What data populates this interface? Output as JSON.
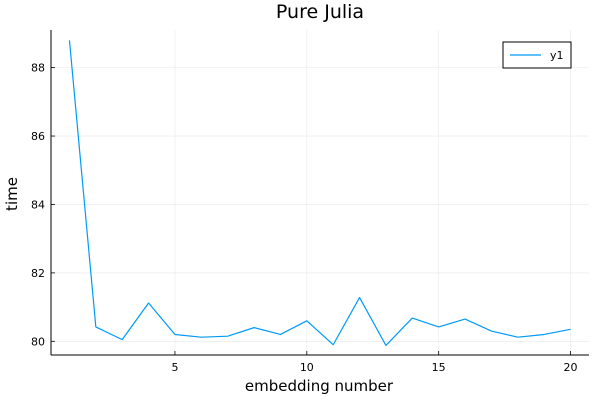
{
  "chart_data": {
    "type": "line",
    "title": "Pure Julia",
    "xlabel": "embedding number",
    "ylabel": "time",
    "xlim": [
      0.3,
      20.7
    ],
    "ylim": [
      79.6,
      89.1
    ],
    "xticks": [
      5,
      10,
      15,
      20
    ],
    "yticks": [
      80,
      82,
      84,
      86,
      88
    ],
    "xtick_labels": [
      "5",
      "10",
      "15",
      "20"
    ],
    "ytick_labels": [
      "80",
      "82",
      "84",
      "86",
      "88"
    ],
    "grid": true,
    "legend_position": "top-right",
    "series": [
      {
        "name": "y1",
        "color": "#009af9",
        "x": [
          1,
          2,
          3,
          4,
          5,
          6,
          7,
          8,
          9,
          10,
          11,
          12,
          13,
          14,
          15,
          16,
          17,
          18,
          19,
          20
        ],
        "y": [
          88.8,
          80.42,
          80.05,
          81.12,
          80.2,
          80.12,
          80.15,
          80.4,
          80.2,
          80.6,
          79.9,
          81.28,
          79.88,
          80.68,
          80.42,
          80.65,
          80.3,
          80.12,
          80.2,
          80.35
        ]
      }
    ]
  }
}
